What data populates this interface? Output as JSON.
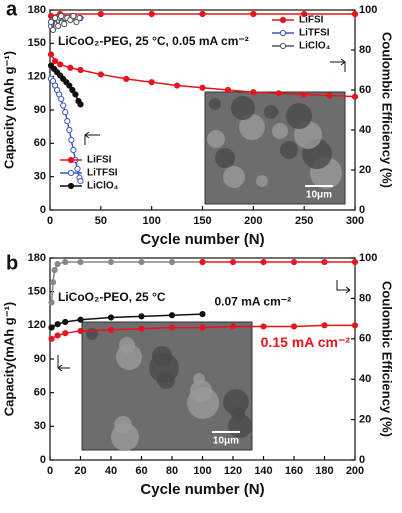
{
  "chart_data": [
    {
      "type": "line",
      "panel_label": "a",
      "annotation": "LiCoO₂-PEG, 25 °C, 0.05 mA cm⁻²",
      "x_label": "Cycle number (N)",
      "y_label": "Capacity (mAh g⁻¹)",
      "y2_label": "Coulombic Efficiency (%)",
      "inset_label": "10μm",
      "legend": "split",
      "xlim": [
        0,
        300
      ],
      "xticks": [
        0,
        50,
        100,
        150,
        200,
        250,
        300
      ],
      "ylim": [
        0,
        180
      ],
      "yticks": [
        0,
        30,
        60,
        90,
        120,
        150,
        180
      ],
      "y2lim": [
        0,
        100
      ],
      "y2ticks": [
        0,
        20,
        40,
        60,
        80,
        100
      ],
      "series": [
        {
          "name": "LiFSI",
          "color": "#e8141c",
          "marker": "circle",
          "x": [
            1,
            5,
            10,
            20,
            30,
            50,
            75,
            100,
            125,
            150,
            175,
            200,
            225,
            250,
            275,
            300
          ],
          "values": [
            140,
            134,
            131,
            128,
            126,
            122,
            118,
            115,
            112,
            110,
            108,
            106,
            105,
            104,
            103,
            102
          ]
        },
        {
          "name": "LiTFSI",
          "color": "#3a57c4",
          "marker": "open-circle",
          "x": [
            1,
            3,
            5,
            7,
            9,
            11,
            13,
            15,
            17,
            19,
            21,
            23,
            25,
            27,
            29,
            30
          ],
          "values": [
            118,
            116,
            112,
            108,
            104,
            100,
            94,
            88,
            80,
            72,
            63,
            54,
            45,
            37,
            29,
            26
          ]
        },
        {
          "name": "LiClO₄",
          "color": "#111111",
          "marker": "circle",
          "x": [
            1,
            4,
            7,
            10,
            13,
            16,
            19,
            22,
            25,
            28,
            30
          ],
          "values": [
            130,
            127,
            124,
            121,
            118,
            115,
            112,
            108,
            104,
            98,
            95
          ]
        },
        {
          "name": "LiFSI",
          "color": "#e8141c",
          "marker": "circle",
          "axis": "y2",
          "x": [
            1,
            10,
            50,
            100,
            150,
            200,
            250,
            300
          ],
          "values": [
            97,
            98,
            98,
            98,
            98,
            98,
            98,
            98
          ]
        },
        {
          "name": "LiTFSI",
          "color": "#3a57c4",
          "marker": "open-circle",
          "axis": "y2",
          "x": [
            1,
            3,
            5,
            10,
            15,
            20,
            25,
            30
          ],
          "values": [
            92,
            95,
            96,
            96,
            96,
            96,
            96,
            96
          ]
        },
        {
          "name": "LiClO₄",
          "color": "#555555",
          "marker": "open-circle",
          "axis": "y2",
          "x": [
            1,
            3,
            5,
            8,
            11,
            14,
            17,
            20,
            23,
            26,
            29
          ],
          "values": [
            94,
            90,
            96,
            92,
            97,
            93,
            96,
            95,
            97,
            94,
            96
          ]
        }
      ]
    },
    {
      "type": "line",
      "panel_label": "b",
      "annotation": "LiCoO₂-PEO, 25 °C",
      "x_label": "Cycle number (N)",
      "y_label": "Capacity(mAh g⁻¹)",
      "y2_label": "Coulombic Efficiency (%)",
      "inset_label": "10μm",
      "legend": "inline",
      "xlim": [
        0,
        200
      ],
      "xticks": [
        0,
        20,
        40,
        60,
        80,
        100,
        120,
        140,
        160,
        180,
        200
      ],
      "ylim": [
        0,
        180
      ],
      "yticks": [
        0,
        30,
        60,
        90,
        120,
        150,
        180
      ],
      "y2lim": [
        0,
        100
      ],
      "y2ticks": [
        0,
        20,
        40,
        60,
        80,
        100
      ],
      "series": [
        {
          "name": "0.07 mA cm⁻²",
          "color": "#111111",
          "marker": "circle",
          "x": [
            1,
            5,
            10,
            20,
            40,
            60,
            80,
            100
          ],
          "values": [
            118,
            121,
            123,
            125,
            127,
            128,
            129,
            130
          ]
        },
        {
          "name": "0.15 mA cm⁻²",
          "color": "#e8141c",
          "marker": "circle",
          "x": [
            1,
            5,
            10,
            20,
            40,
            60,
            80,
            100,
            120,
            140,
            160,
            180,
            200
          ],
          "values": [
            108,
            111,
            113,
            115,
            116,
            117,
            118,
            118,
            119,
            119,
            119,
            120,
            120
          ]
        },
        {
          "color": "#888888",
          "marker": "circle",
          "axis": "y2",
          "x": [
            1,
            2,
            3,
            5,
            10,
            20,
            40,
            60,
            80,
            100
          ],
          "values": [
            78,
            88,
            94,
            97,
            98,
            98,
            98,
            98,
            98,
            98
          ]
        },
        {
          "color": "#e8141c",
          "marker": "circle",
          "axis": "y2",
          "x": [
            100,
            120,
            140,
            160,
            180,
            200
          ],
          "values": [
            98,
            98,
            98,
            98,
            98,
            98
          ]
        }
      ]
    }
  ]
}
